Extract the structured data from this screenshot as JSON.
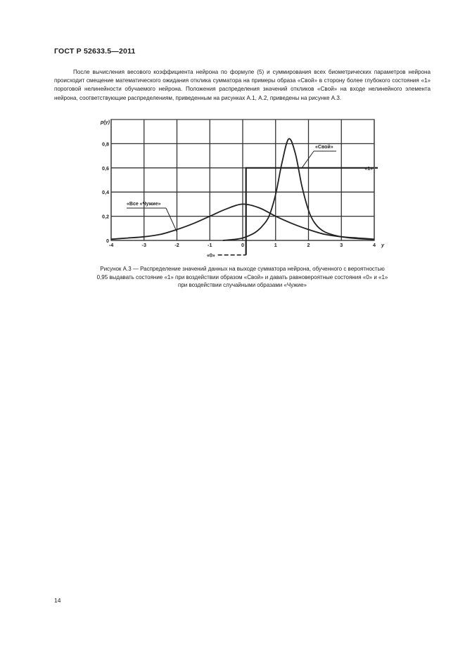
{
  "header": "ГОСТ Р 52633.5—2011",
  "paragraph": "После вычисления весового коэффициента нейрона по формуле (5) и суммирования всех биометрических параметров нейрона происходит смещение математического ожидания отклика сумматора на примеры образа «Свой» в сторону более глубокого состояния «1» пороговой нелинейности обучаемого нейрона. Положения распределения значений откликов «Свой» на входе нелинейного элемента нейрона, соответствующие распределениям, приведенным на рисунках А.1, А.2, приведены на рисунке А.3.",
  "caption": {
    "line1": "Рисунок А.3 — Распределение значений данных на выходе сумматора нейрона, обученного с вероятностью",
    "line2": "0,95 выдавать состояние «1» при воздействии образом «Свой» и давать равновероятные состояния «0» и «1»",
    "line3": "при воздействии случайными образами «Чужие»"
  },
  "page_number": "14",
  "chart_data": {
    "type": "line",
    "xlabel": "y",
    "ylabel": "p(y)",
    "xlim": [
      -4,
      4
    ],
    "ylim": [
      0,
      1.0
    ],
    "x_ticks": [
      "-4",
      "-3",
      "-2",
      "-1",
      "0",
      "1",
      "2",
      "3",
      "4"
    ],
    "y_ticks": [
      "0",
      "0,2",
      "0,4",
      "0,6",
      "0,8"
    ],
    "grid": true,
    "series": [
      {
        "name": "«Все «Чужие»",
        "color": "#222222",
        "x": [
          -4,
          -3.5,
          -3,
          -2.5,
          -2,
          -1.5,
          -1,
          -0.5,
          0,
          0.5,
          1,
          1.5,
          2,
          2.5,
          3,
          3.5,
          4
        ],
        "y": [
          0.01,
          0.02,
          0.03,
          0.05,
          0.09,
          0.14,
          0.2,
          0.26,
          0.3,
          0.27,
          0.2,
          0.14,
          0.09,
          0.05,
          0.03,
          0.02,
          0.01
        ]
      },
      {
        "name": "«Свой»",
        "color": "#222222",
        "x": [
          -0.6,
          -0.2,
          0,
          0.2,
          0.4,
          0.6,
          0.8,
          1.0,
          1.2,
          1.4,
          1.6,
          1.8,
          2.0,
          2.2,
          2.5,
          3.0,
          3.5,
          4
        ],
        "y": [
          0.0,
          0.01,
          0.02,
          0.04,
          0.07,
          0.12,
          0.2,
          0.38,
          0.65,
          0.84,
          0.72,
          0.45,
          0.25,
          0.14,
          0.07,
          0.03,
          0.015,
          0.008
        ]
      },
      {
        "name": "threshold",
        "color": "#222222",
        "x": [
          0.1,
          0.1,
          4
        ],
        "y": [
          -0.12,
          0.6,
          0.6
        ]
      }
    ],
    "annotations": [
      {
        "text": "«Все «Чужие»",
        "points_to": [
          -2,
          0.07
        ]
      },
      {
        "text": "«Свой»",
        "points_to": [
          1.8,
          0.6
        ]
      },
      {
        "text": "«1»",
        "at": [
          4,
          0.6
        ]
      },
      {
        "text": "«0»",
        "at": [
          0.1,
          -0.12
        ]
      }
    ]
  }
}
